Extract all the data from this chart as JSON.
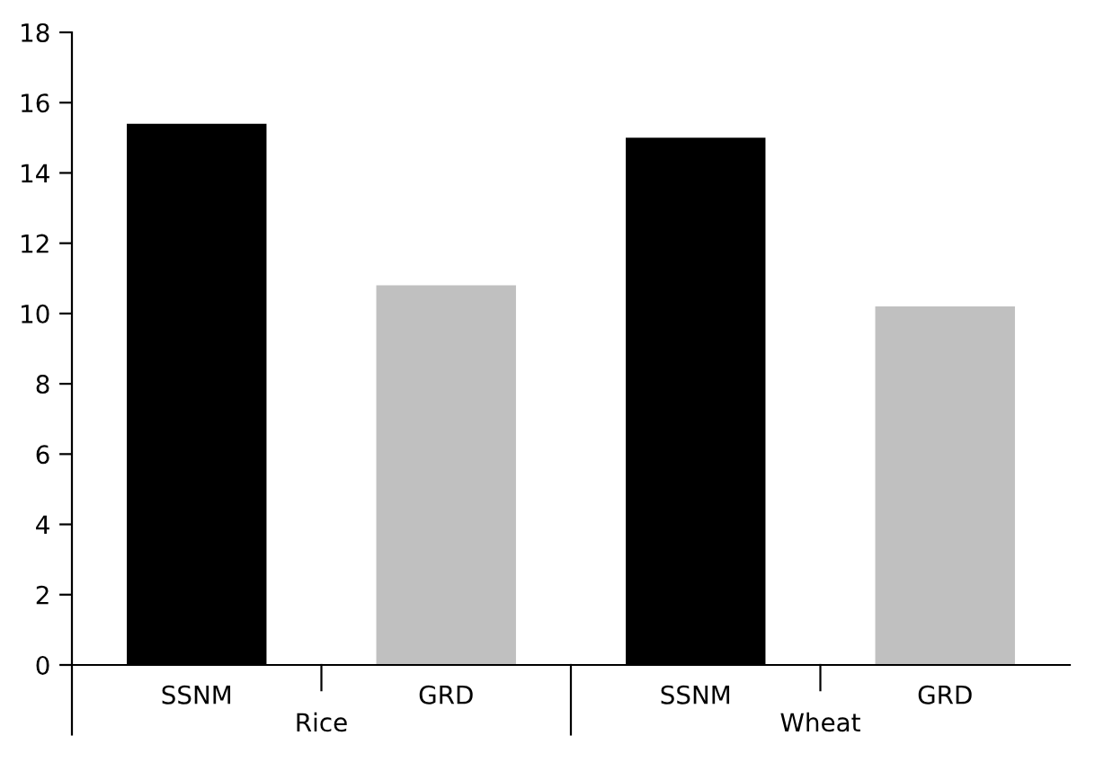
{
  "chart_data": {
    "type": "bar",
    "categories": [
      "SSNM",
      "GRD",
      "SSNM",
      "GRD"
    ],
    "values": [
      15.4,
      10.8,
      15.0,
      10.2
    ],
    "colors": [
      "#000000",
      "#c0c0c0",
      "#000000",
      "#c0c0c0"
    ],
    "ylim": [
      0,
      18
    ],
    "yticks": [
      0,
      2,
      4,
      6,
      8,
      10,
      12,
      14,
      16,
      18
    ],
    "annotations": [
      "Rice",
      "Wheat"
    ],
    "grid": false,
    "legend": false
  }
}
